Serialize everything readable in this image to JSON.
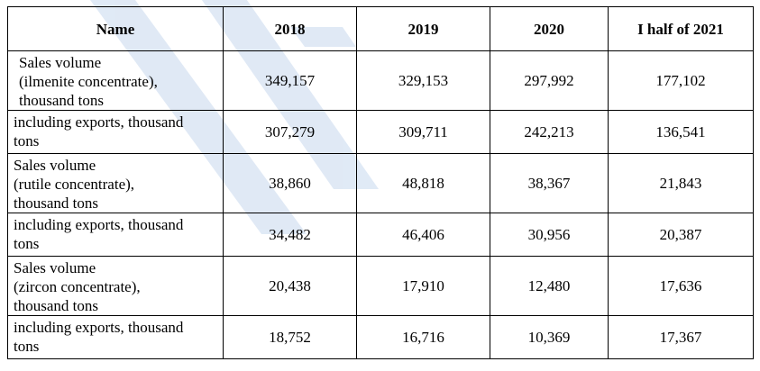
{
  "colors": {
    "border": "#000000",
    "watermark": "#dbe6f4"
  },
  "table": {
    "headers": [
      "Name",
      "2018",
      "2019",
      "2020",
      "I half of 2021"
    ],
    "rows": [
      {
        "name": " Sales volume\n(ilmenite concentrate),\nthousand tons",
        "values": [
          "349,157",
          "329,153",
          "297,992",
          "177,102"
        ]
      },
      {
        "name": " including exports, thousand\ntons",
        "values": [
          "307,279",
          "309,711",
          "242,213",
          "136,541"
        ]
      },
      {
        "name": "Sales volume\n(rutile concentrate),\nthousand tons",
        "values": [
          "38,860",
          "48,818",
          "38,367",
          "21,843"
        ]
      },
      {
        "name": "including exports, thousand\ntons",
        "values": [
          "34,482",
          "46,406",
          "30,956",
          "20,387"
        ]
      },
      {
        "name": "Sales volume\n(zircon concentrate),\nthousand tons",
        "values": [
          "20,438",
          "17,910",
          "12,480",
          "17,636"
        ]
      },
      {
        "name": "including exports, thousand\ntons",
        "values": [
          "18,752",
          "16,716",
          "10,369",
          "17,367"
        ]
      }
    ]
  }
}
